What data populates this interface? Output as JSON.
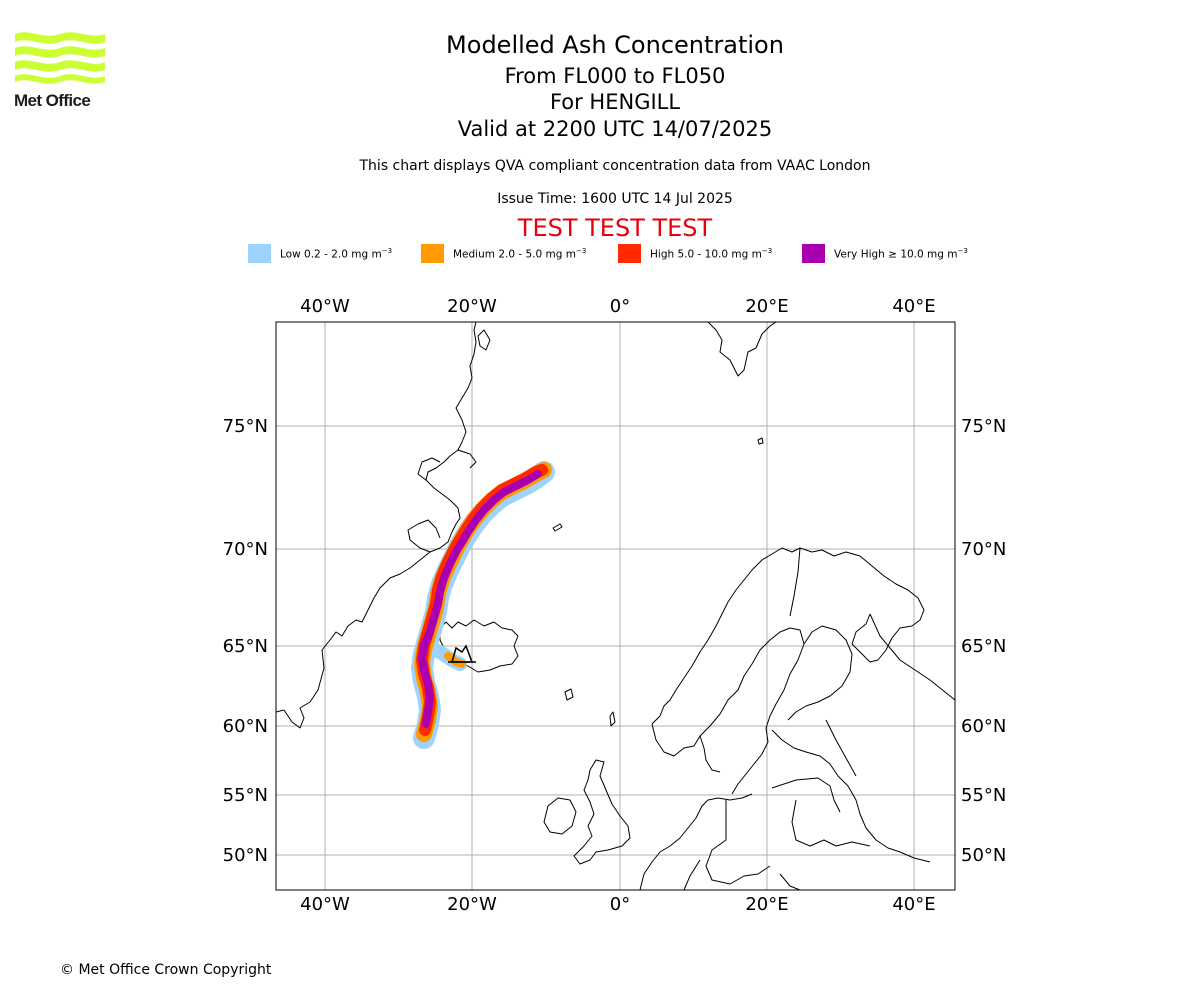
{
  "logo": {
    "text": "Met Office",
    "color": "#ccff33"
  },
  "header": {
    "title": "Modelled Ash Concentration",
    "levels": "From FL000 to FL050",
    "volcano": "For HENGILL",
    "valid": "Valid at 2200 UTC 14/07/2025",
    "subtitle": "This chart displays QVA compliant concentration data from VAAC London",
    "issue": "Issue Time: 1600 UTC 14 Jul 2025",
    "test_banner": "TEST TEST TEST"
  },
  "legend": [
    {
      "name": "Low",
      "range": "0.2 - 2.0 mg m",
      "color": "#9fd3ff"
    },
    {
      "name": "Medium",
      "range": "2.0 - 5.0 mg m",
      "color": "#ff9a00"
    },
    {
      "name": "High",
      "range": "5.0 - 10.0 mg m",
      "color": "#ff2a00"
    },
    {
      "name": "Very High",
      "range": "≥  10.0 mg m",
      "color": "#a800b0"
    }
  ],
  "legend_exponent": "−3",
  "map": {
    "lon_ticks": [
      "40°W",
      "20°W",
      "0°",
      "20°E",
      "40°E"
    ],
    "lat_ticks": [
      "75°N",
      "70°N",
      "65°N",
      "60°N",
      "55°N",
      "50°N"
    ],
    "grid": true,
    "colors": {
      "gridline": "#b0b0b0",
      "coastline": "#000000",
      "frame": "#000000"
    }
  },
  "footer": {
    "copyright": "© Met Office Crown Copyright"
  }
}
